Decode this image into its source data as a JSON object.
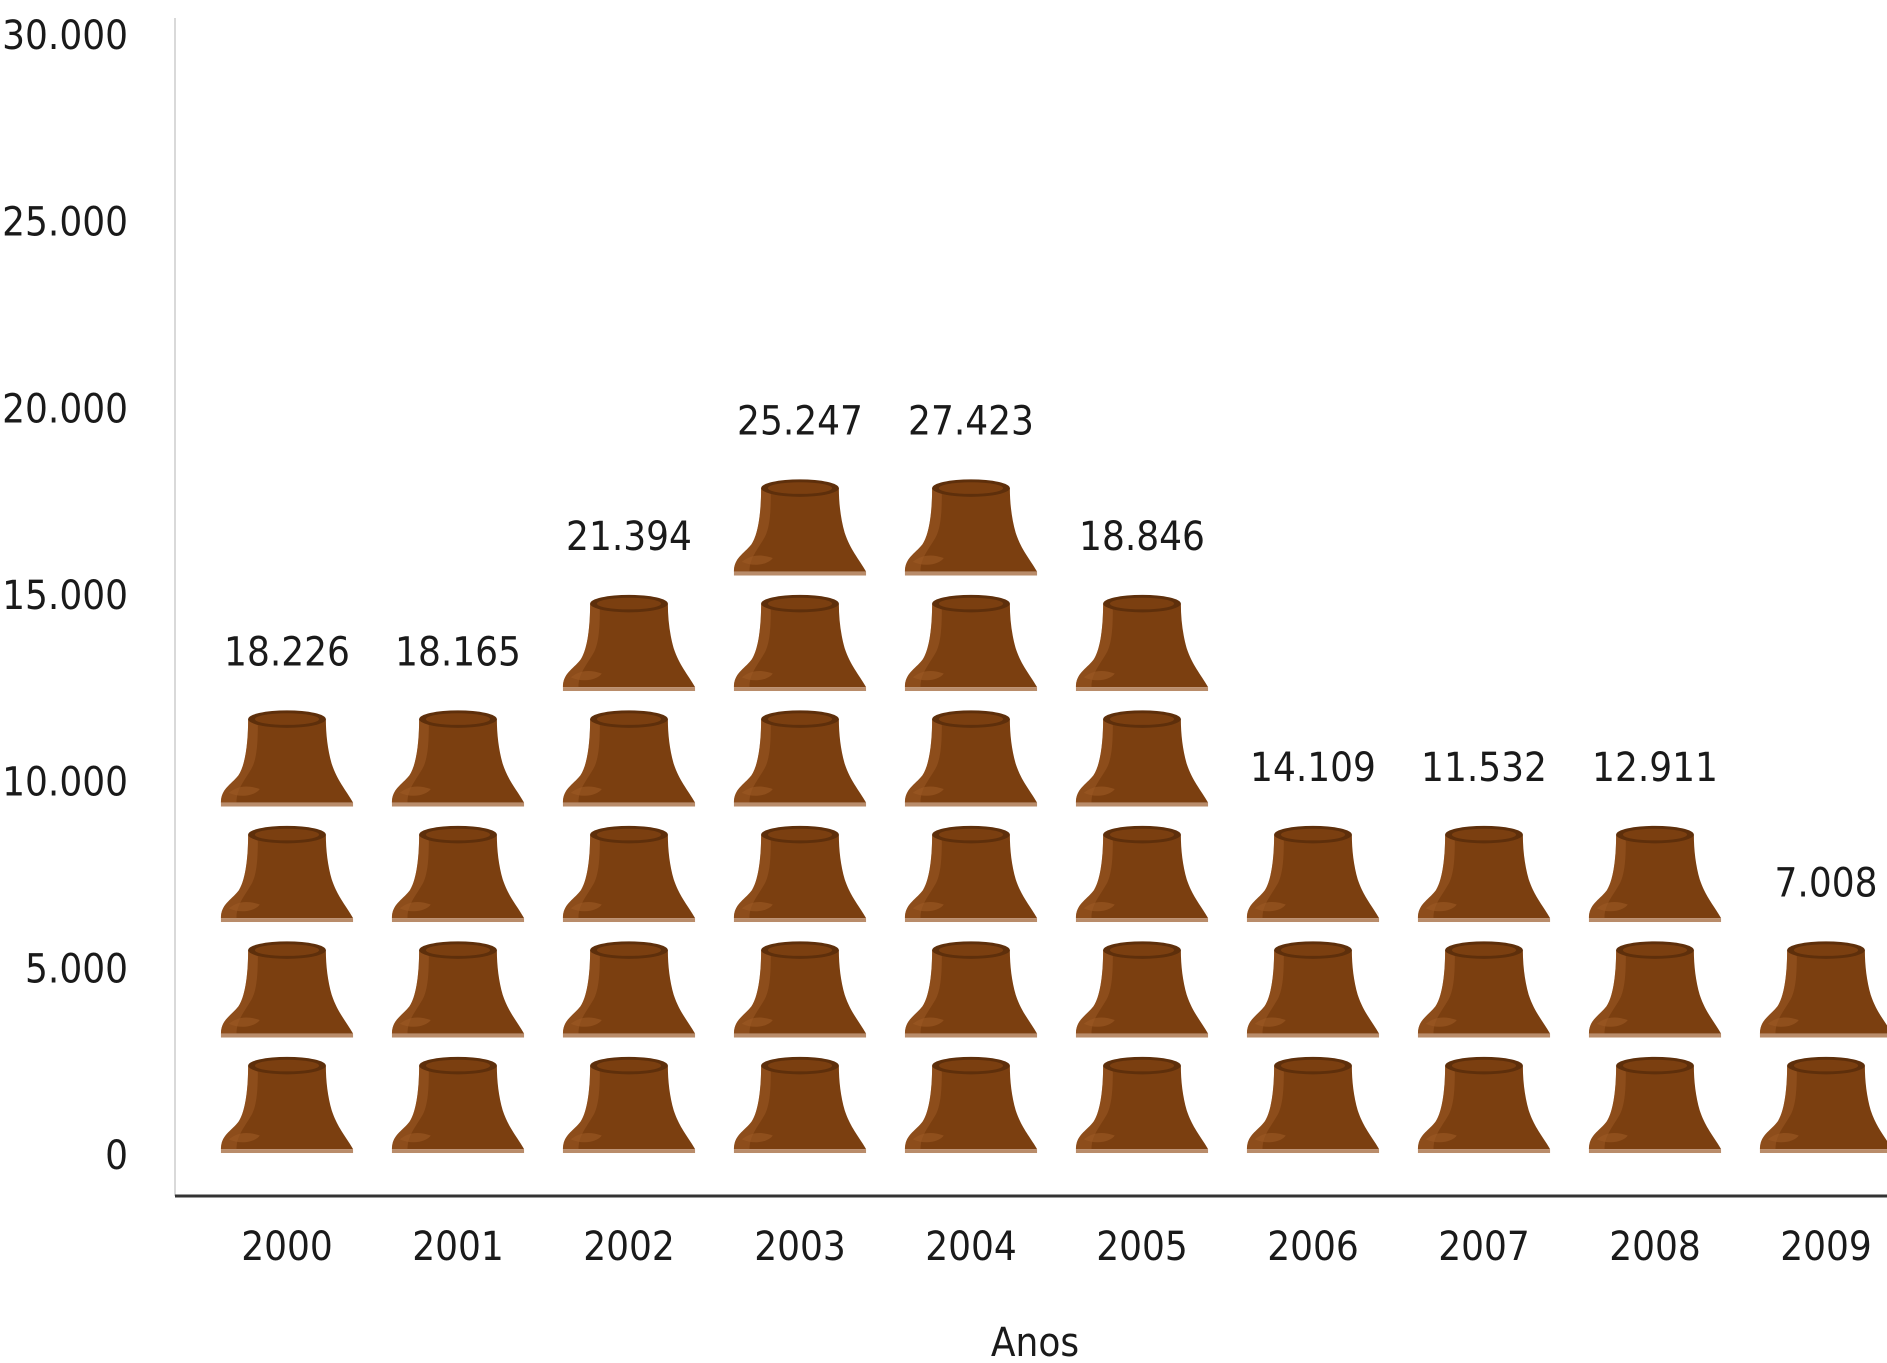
{
  "chart_data": {
    "type": "bar",
    "style": "pictograph",
    "icon": "tree-stump-icon",
    "icon_color": "#7b3f10",
    "icon_dark_color": "#5e2f0b",
    "icon_light_color": "#9c5a25",
    "icon_value": 4500,
    "categories": [
      "2000",
      "2001",
      "2002",
      "2003",
      "2004",
      "2005",
      "2006",
      "2007",
      "2008",
      "2009"
    ],
    "values": [
      18226,
      18165,
      21394,
      25247,
      27423,
      18846,
      14109,
      11532,
      12911,
      7008
    ],
    "value_labels": [
      "18.226",
      "18.165",
      "21.394",
      "25.247",
      "27.423",
      "18.846",
      "14.109",
      "11.532",
      "12.911",
      "7.008"
    ],
    "title": "",
    "xlabel": "Anos",
    "ylabel": "",
    "ylim": [
      0,
      30000
    ],
    "yticks": [
      0,
      5000,
      10000,
      15000,
      20000,
      25000,
      30000
    ],
    "ytick_labels": [
      "0",
      "5.000",
      "10.000",
      "15.000",
      "20.000",
      "25.000",
      "30.000"
    ],
    "grid": false,
    "legend": "none"
  }
}
